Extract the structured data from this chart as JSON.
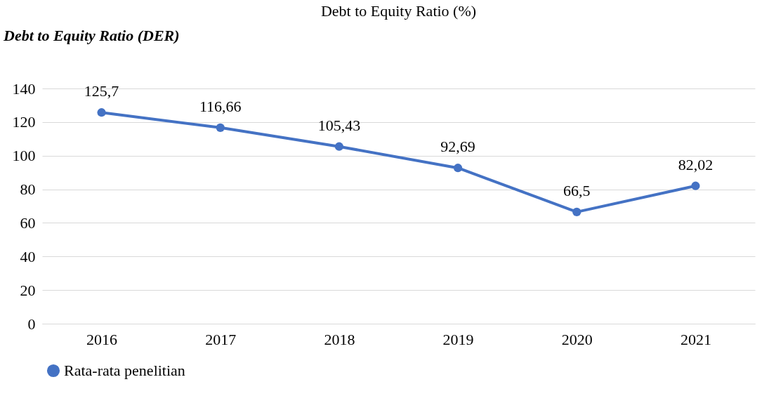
{
  "chart_data": {
    "type": "line",
    "title": "Debt to Equity Ratio (%)",
    "categories": [
      "2016",
      "2017",
      "2018",
      "2019",
      "2020",
      "2021"
    ],
    "series": [
      {
        "name": "Rata-rata penelitian",
        "color": "#4472c4",
        "values": [
          125.7,
          116.66,
          105.43,
          92.69,
          66.5,
          82.02
        ],
        "value_labels": [
          "125,7",
          "116,66",
          "105,43",
          "92,69",
          "66,5",
          "82,02"
        ]
      }
    ],
    "ylim": [
      0,
      140
    ],
    "yticks": [
      0,
      20,
      40,
      60,
      80,
      100,
      120,
      140
    ],
    "grid": "y",
    "legend": "bottom",
    "marker": "circle",
    "line_style": "solid",
    "annotations": [
      "Debt to Equity Ratio (DER)"
    ]
  }
}
